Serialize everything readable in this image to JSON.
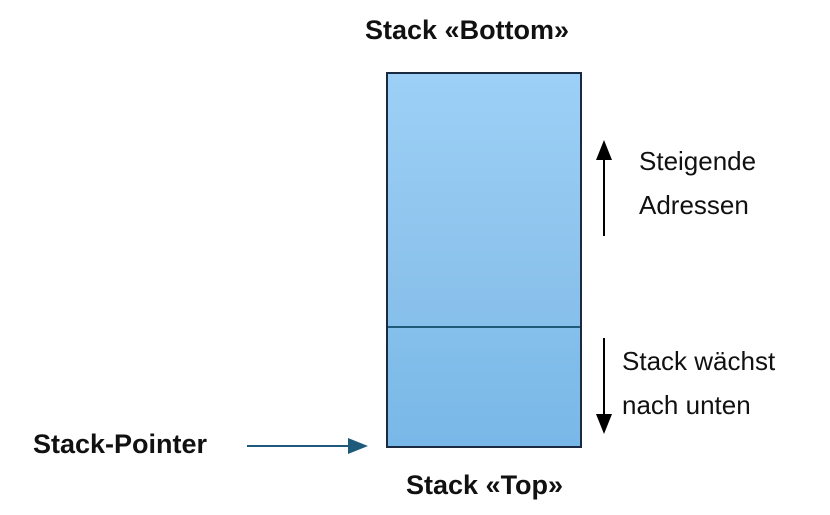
{
  "diagram": {
    "stack_bottom_label": "Stack «Bottom»",
    "stack_top_label": "Stack «Top»",
    "stack_pointer_label": "Stack-Pointer",
    "rising_addresses": [
      "Steigende",
      "Adressen"
    ],
    "stack_grows": [
      "Stack wächst",
      "nach unten"
    ]
  },
  "colors": {
    "stack_fill_top": "#9dd0f6",
    "stack_fill_bottom": "#78b8e8",
    "pointer_arrow": "#1f5a7a",
    "text": "#111111"
  }
}
